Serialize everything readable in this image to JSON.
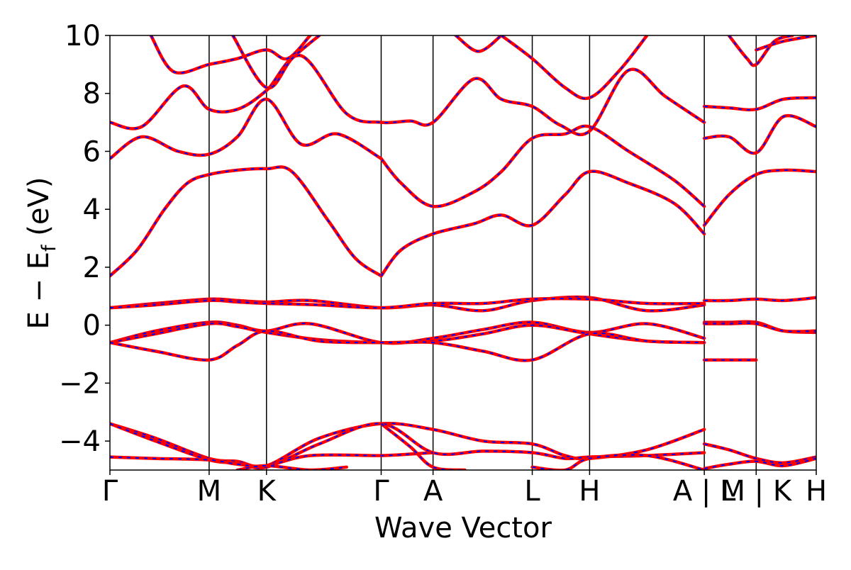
{
  "chart_data": {
    "type": "line",
    "title": "",
    "xlabel": "Wave Vector",
    "ylabel": "E − E",
    "ylabel_sub": "f",
    "ylabel_unit": " (eV)",
    "ylim": [
      -5,
      10
    ],
    "yticks": [
      -4,
      -2,
      0,
      2,
      4,
      6,
      8,
      10
    ],
    "ytick_labels": [
      "−4",
      "−2",
      "0",
      "2",
      "4",
      "6",
      "8",
      "10"
    ],
    "grid": false,
    "legend": "none",
    "xlim": [
      0,
      7.76
    ],
    "kpoints": [
      {
        "label": "Γ",
        "x": 0.0
      },
      {
        "label": "M",
        "x": 1.09
      },
      {
        "label": "K",
        "x": 1.72
      },
      {
        "label": "Γ",
        "x": 2.98
      },
      {
        "label": "A",
        "x": 3.55
      },
      {
        "label": "L",
        "x": 4.64
      },
      {
        "label": "H",
        "x": 5.27
      },
      {
        "label": "A",
        "x": 6.53
      },
      {
        "label": "L",
        "x": 6.53
      },
      {
        "label": "M",
        "x": 7.1
      },
      {
        "label": "K",
        "x": 7.1
      },
      {
        "label": "H",
        "x": 7.76
      }
    ],
    "kpoint_tick_labels": [
      {
        "label": "Γ",
        "x": 0.0
      },
      {
        "label": "M",
        "x": 1.09
      },
      {
        "label": "K",
        "x": 1.72
      },
      {
        "label": "Γ",
        "x": 2.98
      },
      {
        "label": "A",
        "x": 3.55
      },
      {
        "label": "L",
        "x": 4.64
      },
      {
        "label": "H",
        "x": 5.27
      },
      {
        "label": "A | L",
        "x": 6.53
      },
      {
        "label": "M | K",
        "x": 7.1
      },
      {
        "label": "H",
        "x": 7.76
      }
    ],
    "vertical_lines_x": [
      1.09,
      1.72,
      2.98,
      3.55,
      4.64,
      5.27,
      6.53,
      7.1
    ],
    "series_colors": {
      "reference": "#0000ff",
      "overlay": "#ff0000"
    },
    "series": [
      {
        "x": [
          0,
          0.3,
          0.6,
          0.85,
          1.09,
          1.4,
          1.72,
          2.0,
          2.4,
          2.7,
          2.98
        ],
        "values": [
          1.7,
          2.6,
          4.0,
          4.9,
          5.2,
          5.35,
          5.4,
          5.3,
          3.6,
          2.3,
          1.7
        ]
      },
      {
        "x": [
          2.98,
          3.2,
          3.55,
          4.0,
          4.3,
          4.64,
          5.0,
          5.27,
          5.7,
          6.2,
          6.53
        ],
        "values": [
          1.7,
          2.6,
          3.15,
          3.5,
          3.8,
          3.45,
          4.5,
          5.3,
          4.9,
          4.2,
          3.15
        ]
      },
      {
        "x": [
          2.98,
          3.2,
          3.55,
          4.0,
          4.3,
          4.64,
          5.0,
          5.27,
          5.7,
          6.2,
          6.53
        ],
        "values": [
          5.75,
          4.9,
          4.1,
          4.6,
          5.3,
          6.45,
          6.6,
          6.85,
          6.0,
          5.0,
          4.1
        ]
      },
      {
        "x": [
          0,
          0.35,
          0.75,
          1.09,
          1.4,
          1.72,
          2.1,
          2.5,
          2.98
        ],
        "values": [
          5.75,
          6.5,
          6.0,
          5.9,
          6.5,
          7.8,
          6.25,
          6.6,
          5.75
        ]
      },
      {
        "x": [
          0,
          0.35,
          0.8,
          1.09,
          1.4,
          1.72,
          2.1,
          2.6,
          2.98,
          3.3,
          3.55,
          4.0,
          4.3,
          4.64,
          4.95,
          5.27,
          5.7,
          6.1,
          6.53
        ],
        "values": [
          7.0,
          6.85,
          8.25,
          7.45,
          7.45,
          8.1,
          9.3,
          7.3,
          7.0,
          7.05,
          7.0,
          8.5,
          7.8,
          7.55,
          6.9,
          6.7,
          8.8,
          7.9,
          7.0
        ]
      },
      {
        "x": [
          0.45,
          0.7,
          1.09,
          1.4,
          1.72,
          1.95,
          2.2
        ],
        "values": [
          10.0,
          8.75,
          9.0,
          9.2,
          9.5,
          9.2,
          10.0
        ]
      },
      {
        "x": [
          1.35,
          1.72,
          2.0,
          2.3
        ],
        "values": [
          10.0,
          8.2,
          9.2,
          10.0
        ]
      },
      {
        "x": [
          3.8,
          4.05,
          4.3
        ],
        "values": [
          10.0,
          9.45,
          10.0
        ]
      },
      {
        "x": [
          4.3,
          4.64,
          5.0,
          5.27,
          5.6,
          5.9
        ],
        "values": [
          10.0,
          9.2,
          8.2,
          7.85,
          8.8,
          10.0
        ]
      },
      {
        "x": [
          0,
          0.5,
          1.09,
          1.4,
          1.72,
          2.2,
          2.98,
          3.55,
          4.1,
          4.64,
          5.27,
          5.9,
          6.53
        ],
        "values": [
          0.6,
          0.75,
          0.9,
          0.85,
          0.8,
          0.85,
          0.6,
          0.7,
          0.5,
          0.85,
          0.95,
          0.5,
          0.7
        ]
      },
      {
        "x": [
          0,
          0.5,
          1.09,
          1.4,
          1.72,
          2.3,
          2.98,
          3.55,
          4.1,
          4.64,
          5.27,
          5.9,
          6.53
        ],
        "values": [
          0.6,
          0.7,
          0.85,
          0.8,
          0.75,
          0.7,
          0.6,
          0.75,
          0.75,
          0.9,
          0.9,
          0.75,
          0.75
        ]
      },
      {
        "x": [
          0,
          0.5,
          1.09,
          1.4,
          1.72,
          2.2,
          2.98,
          3.55,
          4.1,
          4.64,
          5.27,
          5.9,
          6.53
        ],
        "values": [
          -0.6,
          -0.2,
          0.1,
          0.0,
          -0.2,
          0.05,
          -0.6,
          -0.45,
          -0.15,
          0.1,
          -0.25,
          0.05,
          -0.45
        ]
      },
      {
        "x": [
          0,
          0.5,
          1.09,
          1.4,
          1.72,
          2.3,
          2.98,
          3.55,
          4.1,
          4.64,
          5.27,
          5.9,
          6.53
        ],
        "values": [
          -0.6,
          -0.3,
          0.05,
          -0.05,
          -0.25,
          -0.5,
          -0.6,
          -0.55,
          -0.3,
          0.0,
          -0.3,
          -0.55,
          -0.6
        ]
      },
      {
        "x": [
          0,
          0.5,
          1.09,
          1.4,
          1.72,
          2.3,
          2.98,
          3.55,
          4.1,
          4.64,
          5.27,
          5.9,
          6.53
        ],
        "values": [
          -0.6,
          -0.9,
          -1.2,
          -0.7,
          -0.2,
          -0.55,
          -0.6,
          -0.6,
          -0.9,
          -1.2,
          -0.3,
          -0.55,
          -0.6
        ]
      },
      {
        "x": [
          0,
          0.5,
          1.09,
          1.4,
          1.72,
          2.3,
          2.98,
          3.55,
          4.1,
          4.64,
          5.0,
          5.27,
          5.9,
          6.53
        ],
        "values": [
          -3.4,
          -3.9,
          -4.6,
          -4.7,
          -4.85,
          -3.9,
          -3.4,
          -3.6,
          -4.0,
          -4.1,
          -4.5,
          -4.6,
          -4.3,
          -3.6
        ]
      },
      {
        "x": [
          0,
          0.5,
          1.09,
          1.4,
          1.72,
          2.3,
          2.98,
          3.55,
          4.1,
          4.64,
          5.0,
          5.27,
          5.9,
          6.53
        ],
        "values": [
          -3.4,
          -4.0,
          -4.65,
          -4.75,
          -4.9,
          -4.1,
          -3.4,
          -4.4,
          -4.35,
          -4.4,
          -4.6,
          -4.55,
          -4.5,
          -4.4
        ]
      },
      {
        "x": [
          0,
          0.5,
          1.09,
          1.4,
          1.72,
          2.2,
          2.98,
          3.3,
          3.55
        ],
        "values": [
          -4.55,
          -4.6,
          -4.65,
          -4.8,
          -4.85,
          -4.5,
          -4.5,
          -4.45,
          -4.4
        ]
      },
      {
        "x": [
          2.98,
          3.3,
          3.55,
          3.9
        ],
        "values": [
          -3.4,
          -4.2,
          -4.9,
          -5.0
        ]
      },
      {
        "x": [
          1.4,
          1.72,
          2.2,
          2.6
        ],
        "values": [
          -5.0,
          -4.85,
          -5.0,
          -4.9
        ]
      },
      {
        "x": [
          4.64,
          5.0,
          5.27,
          5.9,
          6.53
        ],
        "values": [
          -4.9,
          -5.0,
          -4.6,
          -4.5,
          -5.0
        ]
      },
      {
        "x": [
          6.53,
          6.8,
          7.1,
          7.4,
          7.76
        ],
        "values": [
          7.55,
          7.5,
          7.45,
          7.8,
          7.85
        ]
      },
      {
        "x": [
          6.53,
          6.8,
          7.1,
          7.4,
          7.76
        ],
        "values": [
          6.45,
          6.5,
          5.95,
          7.2,
          6.85
        ]
      },
      {
        "x": [
          6.53,
          6.8,
          7.1,
          7.4,
          7.76
        ],
        "values": [
          3.45,
          4.5,
          5.2,
          5.35,
          5.3
        ]
      },
      {
        "x": [
          6.8,
          7.0,
          7.1,
          7.3,
          7.5
        ],
        "values": [
          10.0,
          9.2,
          9.0,
          9.8,
          10.0
        ]
      },
      {
        "x": [
          7.1,
          7.4,
          7.76
        ],
        "values": [
          9.5,
          9.8,
          10.0
        ]
      },
      {
        "x": [
          6.53,
          6.8,
          7.1,
          7.4,
          7.76
        ],
        "values": [
          0.85,
          0.85,
          0.9,
          0.85,
          0.95
        ]
      },
      {
        "x": [
          6.53,
          6.8,
          7.1,
          7.4,
          7.76
        ],
        "values": [
          0.1,
          0.1,
          0.1,
          -0.2,
          -0.25
        ]
      },
      {
        "x": [
          6.53,
          6.8,
          7.1,
          7.4,
          7.76
        ],
        "values": [
          0.05,
          0.05,
          0.05,
          -0.2,
          -0.2
        ]
      },
      {
        "x": [
          6.53,
          6.8,
          7.1
        ],
        "values": [
          -1.2,
          -1.2,
          -1.2
        ]
      },
      {
        "x": [
          6.53,
          6.8,
          7.1,
          7.4,
          7.76
        ],
        "values": [
          -4.1,
          -4.3,
          -4.6,
          -4.75,
          -4.55
        ]
      },
      {
        "x": [
          6.53,
          6.8,
          7.1,
          7.4,
          7.76
        ],
        "values": [
          -4.95,
          -4.8,
          -4.7,
          -4.85,
          -4.6
        ]
      }
    ]
  }
}
